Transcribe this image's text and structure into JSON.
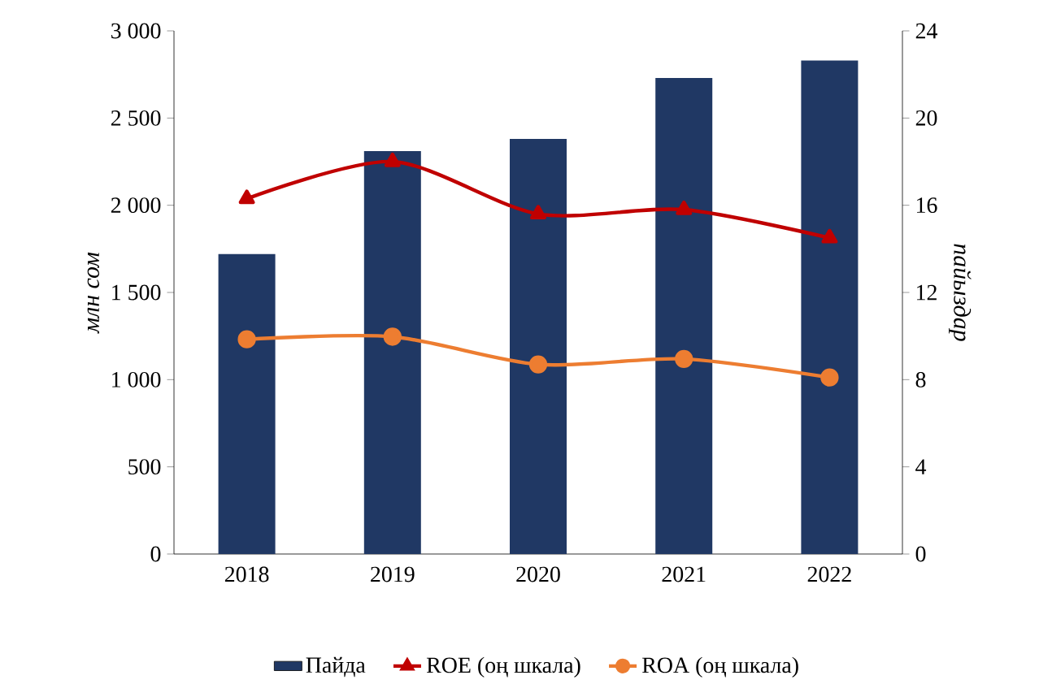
{
  "chart_data": {
    "type": "bar",
    "categories": [
      "2018",
      "2019",
      "2020",
      "2021",
      "2022"
    ],
    "ylabel": "млн сом",
    "y2label": "пайыздар",
    "series": [
      {
        "name": "Пайда",
        "color": "#203864",
        "values": [
          1720,
          2310,
          2380,
          2730,
          2830
        ]
      },
      {
        "name": "ROE (оң  шкала)",
        "type": "line",
        "axis": "y2",
        "marker": "triangle",
        "color": "#c00000",
        "values": [
          16.3,
          18.0,
          15.6,
          15.8,
          14.5
        ]
      },
      {
        "name": "ROA (оң  шкала)",
        "type": "line",
        "axis": "y2",
        "marker": "circle",
        "color": "#ed7d31",
        "values": [
          9.85,
          9.97,
          8.7,
          8.95,
          8.1
        ]
      }
    ],
    "ylim": [
      0,
      3000
    ],
    "yticks": [
      0,
      {
        "value": 500,
        "label": "500"
      },
      {
        "value": 1000,
        "label": "1 000"
      },
      {
        "value": 1500,
        "label": "1 500"
      },
      {
        "value": 2000,
        "label": "2 000"
      },
      {
        "value": 2500,
        "label": "2 500"
      },
      {
        "value": 3000,
        "label": "3 000"
      }
    ],
    "y2lim": [
      0,
      24
    ],
    "y2ticks": [
      0,
      4,
      8,
      12,
      16,
      20,
      24
    ],
    "grid": false,
    "legend": "bottom"
  }
}
